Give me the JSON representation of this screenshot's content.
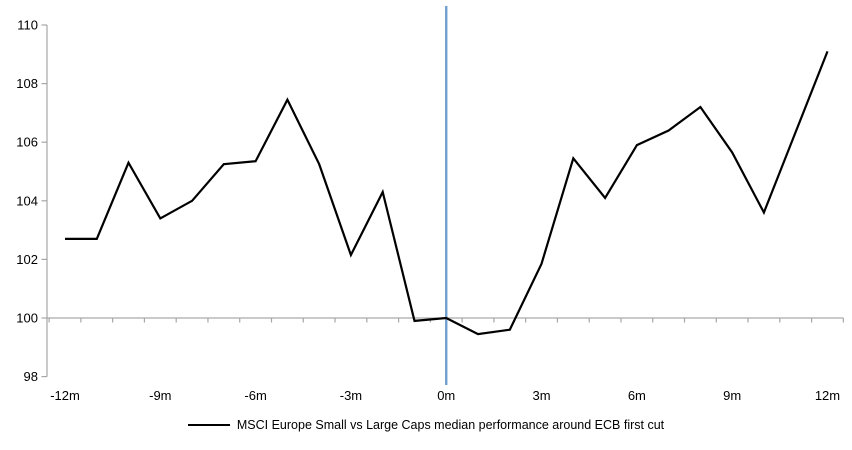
{
  "chart_data": {
    "type": "line",
    "title": "",
    "x": [
      -12,
      -11,
      -10,
      -9,
      -8,
      -7,
      -6,
      -5,
      -4,
      -3,
      -2,
      -1,
      0,
      1,
      2,
      3,
      4,
      5,
      6,
      7,
      8,
      9,
      10,
      11,
      12
    ],
    "series": [
      {
        "name": "MSCI Europe Small vs Large Caps median performance around ECB first cut",
        "color": "#000000",
        "values": [
          102.7,
          102.7,
          105.3,
          103.4,
          104.0,
          105.25,
          105.35,
          107.45,
          105.25,
          102.15,
          104.3,
          99.9,
          100.0,
          99.45,
          99.6,
          101.85,
          105.45,
          104.1,
          105.9,
          106.4,
          107.2,
          105.65,
          103.6,
          106.35,
          109.1
        ]
      }
    ],
    "xlim": [
      -12,
      12
    ],
    "ylim": [
      98,
      110
    ],
    "y_ticks": [
      "110",
      "108",
      "106",
      "104",
      "102",
      "100",
      "98"
    ],
    "y_tick_values": [
      110,
      108,
      106,
      104,
      102,
      100,
      98
    ],
    "x_tick_labels": [
      "-12m",
      "-9m",
      "-6m",
      "-3m",
      "0m",
      "3m",
      "6m",
      "9m",
      "12m"
    ],
    "x_tick_label_months": [
      -12,
      -9,
      -6,
      -3,
      0,
      3,
      6,
      9,
      12
    ],
    "baseline_value": 100,
    "event_line_x": 0,
    "grid": "off",
    "legend_position": "bottom-center",
    "colors": {
      "series": "#000000",
      "event_line": "#6FA0CE",
      "axis": "#A6A6A6",
      "baseline": "#ABABAB",
      "text": "#000000",
      "background": "#FFFFFF"
    }
  },
  "legend": {
    "label": "MSCI Europe Small vs Large Caps median performance around ECB first cut"
  }
}
